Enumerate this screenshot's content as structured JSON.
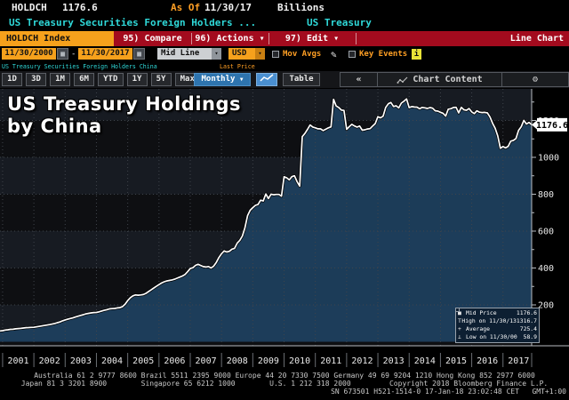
{
  "header": {
    "ticker": "HOLDCH",
    "value": "1176.6",
    "as_of_label": "As Of",
    "as_of_date": "11/30/17",
    "units": "Billions",
    "desc_left": "US Treasury Securities Foreign Holders ...",
    "desc_right": "US Treasury"
  },
  "menubar": {
    "ticker_button": "HOLDCH Index",
    "items": [
      {
        "label": "95) Compare",
        "arrow": false
      },
      {
        "label": "96) Actions",
        "arrow": true
      },
      {
        "label": "97) Edit",
        "arrow": true
      }
    ],
    "right_label": "Line Chart"
  },
  "controls": {
    "date_from": "11/30/2000",
    "dash": "-",
    "date_to": "11/30/2017",
    "field_select": "Mid Line",
    "currency": "USD",
    "mov_avgs_label": "Mov Avgs",
    "key_events_label": "Key Events",
    "info_glyph": "i",
    "security_subtitle": "US Treasury Securities Foreign Holders China",
    "last_price_label": "Last Price"
  },
  "tabbar": {
    "ranges": [
      "1D",
      "3D",
      "1M",
      "6M",
      "YTD",
      "1Y",
      "5Y",
      "Max"
    ],
    "period": "Monthly",
    "period_arrow": "▼",
    "table_label": "Table",
    "collapse_glyph": "«",
    "chart_content_label": "Chart Content",
    "gear_glyph": "⚙"
  },
  "chart_data": {
    "type": "area",
    "title_line1": "US Treasury Holdings",
    "title_line2": "by China",
    "x_start": "11/30/2000",
    "x_end": "11/30/2017",
    "frequency": "Monthly",
    "years": [
      "2001",
      "2002",
      "2003",
      "2004",
      "2005",
      "2006",
      "2007",
      "2008",
      "2009",
      "2010",
      "2011",
      "2012",
      "2013",
      "2014",
      "2015",
      "2016",
      "2017"
    ],
    "y_ticks": [
      200,
      400,
      600,
      800,
      1000,
      1200
    ],
    "y_minor_step": 100,
    "last_value_label": "1176.6",
    "values": [
      58.9,
      60.3,
      63.7,
      65.2,
      67.3,
      68.0,
      70.6,
      71.8,
      72.6,
      74.7,
      76.4,
      77.3,
      78.2,
      78.6,
      80.9,
      83.5,
      85.9,
      88.4,
      90.6,
      92.8,
      95.9,
      99.2,
      103.5,
      107.6,
      113.6,
      118.4,
      122.5,
      126.2,
      129.8,
      134.4,
      138.9,
      143.1,
      147.2,
      151.2,
      154.1,
      156.8,
      158.5,
      159.0,
      162.5,
      166.9,
      170.8,
      174.2,
      178.3,
      179.6,
      180.8,
      183.4,
      185.3,
      190.9,
      203.3,
      222.9,
      239.1,
      249.2,
      254.2,
      252.3,
      254.0,
      255.7,
      262.5,
      272.4,
      281.4,
      291.8,
      300.5,
      310.0,
      318.4,
      325.1,
      329.4,
      332.5,
      335.2,
      339.1,
      345.0,
      350.7,
      356.5,
      364.6,
      380.1,
      396.9,
      401.6,
      414.5,
      420.2,
      414.1,
      407.5,
      405.3,
      408.1,
      400.2,
      410.4,
      430.5,
      457.0,
      477.6,
      492.6,
      486.9,
      490.6,
      502.0,
      506.7,
      535.1,
      550.0,
      573.7,
      618.2,
      684.1,
      713.2,
      727.4,
      739.6,
      744.2,
      767.9,
      763.5,
      801.5,
      776.4,
      800.5,
      797.1,
      798.9,
      798.9,
      789.6,
      894.8,
      889.0,
      877.5,
      895.2,
      900.2,
      867.7,
      843.7,
      1112.1,
      1129.8,
      1151.9,
      1175.3,
      1164.1,
      1160.1,
      1154.7,
      1154.1,
      1144.9,
      1152.5,
      1160.0,
      1165.5,
      1314.9,
      1278.5,
      1270.1,
      1256.0,
      1254.6,
      1151.9,
      1166.2,
      1178.9,
      1169.9,
      1164.0,
      1169.6,
      1147.0,
      1149.5,
      1153.6,
      1155.6,
      1169.9,
      1183.1,
      1220.4,
      1214.2,
      1222.9,
      1270.3,
      1290.8,
      1297.3,
      1275.8,
      1279.3,
      1268.1,
      1293.8,
      1304.5,
      1316.7,
      1270.1,
      1275.1,
      1272.9,
      1272.1,
      1263.2,
      1270.9,
      1268.4,
      1264.9,
      1269.7,
      1266.3,
      1252.7,
      1250.4,
      1244.3,
      1239.1,
      1223.7,
      1261.0,
      1263.4,
      1270.3,
      1271.2,
      1240.8,
      1271.0,
      1258.0,
      1254.8,
      1264.5,
      1246.1,
      1237.3,
      1252.3,
      1244.6,
      1242.8,
      1244.0,
      1240.8,
      1218.8,
      1185.1,
      1157.0,
      1115.7,
      1049.3,
      1058.4,
      1051.1,
      1059.7,
      1087.5,
      1092.2,
      1102.2,
      1146.5,
      1166.5,
      1200.5,
      1180.8,
      1189.2,
      1176.6
    ],
    "legend": {
      "rows": [
        {
          "icon": "■",
          "label": "Mid Price",
          "value": "1176.6"
        },
        {
          "icon": "T",
          "label": "High on 11/30/13",
          "value": "1316.7"
        },
        {
          "icon": "+",
          "label": "Average",
          "value": "725.4"
        },
        {
          "icon": "⊥",
          "label": "Low on 11/30/00",
          "value": "58.9"
        }
      ]
    },
    "colors": {
      "line": "#ffffff",
      "fill": "#1e4160",
      "band_light": "#171b22",
      "band_dark": "#0e0f12",
      "grid": "#3f444b",
      "axis": "#b9bdc2",
      "accent_amber": "#f6a11c",
      "menubar_red": "#a30b1e"
    }
  },
  "footer": {
    "line1": "Australia 61 2 9777 8600 Brazil 5511 2395 9000 Europe 44 20 7330 7500 Germany 49 69 9204 1210 Hong Kong 852 2977 6000",
    "line2": "Japan 81 3 3201 8900        Singapore 65 6212 1000        U.S. 1 212 318 2000         Copyright 2018 Bloomberg Finance L.P.",
    "line3": "SN 673501 H521-1514-0 17-Jan-18 23:02:48 CET   GMT+1:00"
  }
}
